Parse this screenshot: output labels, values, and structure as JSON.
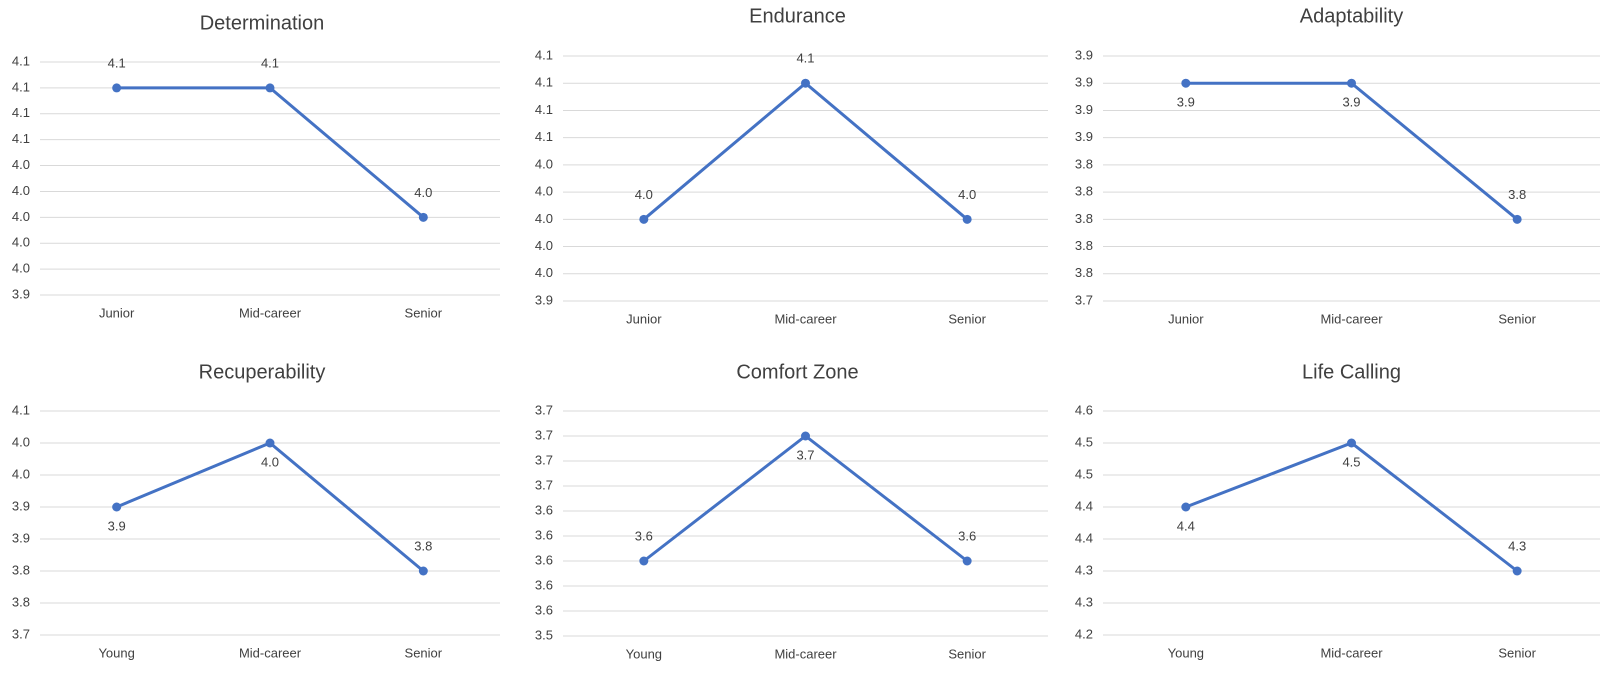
{
  "chart_data": [
    {
      "type": "line",
      "title": "Determination",
      "categories": [
        "Junior",
        "Mid-career",
        "Senior"
      ],
      "values": [
        4.1,
        4.1,
        4.0
      ],
      "value_labels": [
        "4.1",
        "4.1",
        "4.0"
      ],
      "color": "#4472c4",
      "ylim": [
        3.94,
        4.12
      ],
      "yticks": [
        {
          "value": 3.94,
          "label": "3.9"
        },
        {
          "value": 3.96,
          "label": "4.0"
        },
        {
          "value": 3.98,
          "label": "4.0"
        },
        {
          "value": 4.0,
          "label": "4.0"
        },
        {
          "value": 4.02,
          "label": "4.0"
        },
        {
          "value": 4.04,
          "label": "4.0"
        },
        {
          "value": 4.06,
          "label": "4.1"
        },
        {
          "value": 4.08,
          "label": "4.1"
        },
        {
          "value": 4.1,
          "label": "4.1"
        },
        {
          "value": 4.12,
          "label": "4.1"
        }
      ],
      "grid": true
    },
    {
      "type": "line",
      "title": "Endurance",
      "categories": [
        "Junior",
        "Mid-career",
        "Senior"
      ],
      "values": [
        4.0,
        4.1,
        4.0
      ],
      "value_labels": [
        "4.0",
        "4.1",
        "4.0"
      ],
      "color": "#4472c4",
      "ylim": [
        3.94,
        4.12
      ],
      "yticks": [
        {
          "value": 3.94,
          "label": "3.9"
        },
        {
          "value": 3.96,
          "label": "4.0"
        },
        {
          "value": 3.98,
          "label": "4.0"
        },
        {
          "value": 4.0,
          "label": "4.0"
        },
        {
          "value": 4.02,
          "label": "4.0"
        },
        {
          "value": 4.04,
          "label": "4.0"
        },
        {
          "value": 4.06,
          "label": "4.1"
        },
        {
          "value": 4.08,
          "label": "4.1"
        },
        {
          "value": 4.1,
          "label": "4.1"
        },
        {
          "value": 4.12,
          "label": "4.1"
        }
      ],
      "grid": true
    },
    {
      "type": "line",
      "title": "Adaptability",
      "categories": [
        "Junior",
        "Mid-career",
        "Senior"
      ],
      "values": [
        3.9,
        3.9,
        3.8
      ],
      "value_labels": [
        "3.9",
        "3.9",
        "3.8"
      ],
      "color": "#4472c4",
      "ylim": [
        3.74,
        3.92
      ],
      "yticks": [
        {
          "value": 3.74,
          "label": "3.7"
        },
        {
          "value": 3.76,
          "label": "3.8"
        },
        {
          "value": 3.78,
          "label": "3.8"
        },
        {
          "value": 3.8,
          "label": "3.8"
        },
        {
          "value": 3.82,
          "label": "3.8"
        },
        {
          "value": 3.84,
          "label": "3.8"
        },
        {
          "value": 3.86,
          "label": "3.9"
        },
        {
          "value": 3.88,
          "label": "3.9"
        },
        {
          "value": 3.9,
          "label": "3.9"
        },
        {
          "value": 3.92,
          "label": "3.9"
        }
      ],
      "grid": true
    },
    {
      "type": "line",
      "title": "Recuperability",
      "categories": [
        "Young",
        "Mid-career",
        "Senior"
      ],
      "values": [
        3.9,
        4.0,
        3.8
      ],
      "value_labels": [
        "3.9",
        "4.0",
        "3.8"
      ],
      "color": "#4472c4",
      "ylim": [
        3.7,
        4.05
      ],
      "yticks": [
        {
          "value": 3.7,
          "label": "3.7"
        },
        {
          "value": 3.75,
          "label": "3.8"
        },
        {
          "value": 3.8,
          "label": "3.8"
        },
        {
          "value": 3.85,
          "label": "3.9"
        },
        {
          "value": 3.9,
          "label": "3.9"
        },
        {
          "value": 3.95,
          "label": "4.0"
        },
        {
          "value": 4.0,
          "label": "4.0"
        },
        {
          "value": 4.05,
          "label": "4.1"
        }
      ],
      "grid": true
    },
    {
      "type": "line",
      "title": "Comfort Zone",
      "categories": [
        "Young",
        "Mid-career",
        "Senior"
      ],
      "values": [
        3.6,
        3.7,
        3.6
      ],
      "value_labels": [
        "3.6",
        "3.7",
        "3.6"
      ],
      "color": "#4472c4",
      "ylim": [
        3.54,
        3.72
      ],
      "yticks": [
        {
          "value": 3.54,
          "label": "3.5"
        },
        {
          "value": 3.56,
          "label": "3.6"
        },
        {
          "value": 3.58,
          "label": "3.6"
        },
        {
          "value": 3.6,
          "label": "3.6"
        },
        {
          "value": 3.62,
          "label": "3.6"
        },
        {
          "value": 3.64,
          "label": "3.6"
        },
        {
          "value": 3.66,
          "label": "3.7"
        },
        {
          "value": 3.68,
          "label": "3.7"
        },
        {
          "value": 3.7,
          "label": "3.7"
        },
        {
          "value": 3.72,
          "label": "3.7"
        }
      ],
      "grid": true
    },
    {
      "type": "line",
      "title": "Life Calling",
      "categories": [
        "Young",
        "Mid-career",
        "Senior"
      ],
      "values": [
        4.4,
        4.5,
        4.3
      ],
      "value_labels": [
        "4.4",
        "4.5",
        "4.3"
      ],
      "color": "#4472c4",
      "ylim": [
        4.2,
        4.55
      ],
      "yticks": [
        {
          "value": 4.2,
          "label": "4.2"
        },
        {
          "value": 4.25,
          "label": "4.3"
        },
        {
          "value": 4.3,
          "label": "4.3"
        },
        {
          "value": 4.35,
          "label": "4.4"
        },
        {
          "value": 4.4,
          "label": "4.4"
        },
        {
          "value": 4.45,
          "label": "4.5"
        },
        {
          "value": 4.5,
          "label": "4.5"
        },
        {
          "value": 4.55,
          "label": "4.6"
        }
      ],
      "grid": true
    }
  ]
}
